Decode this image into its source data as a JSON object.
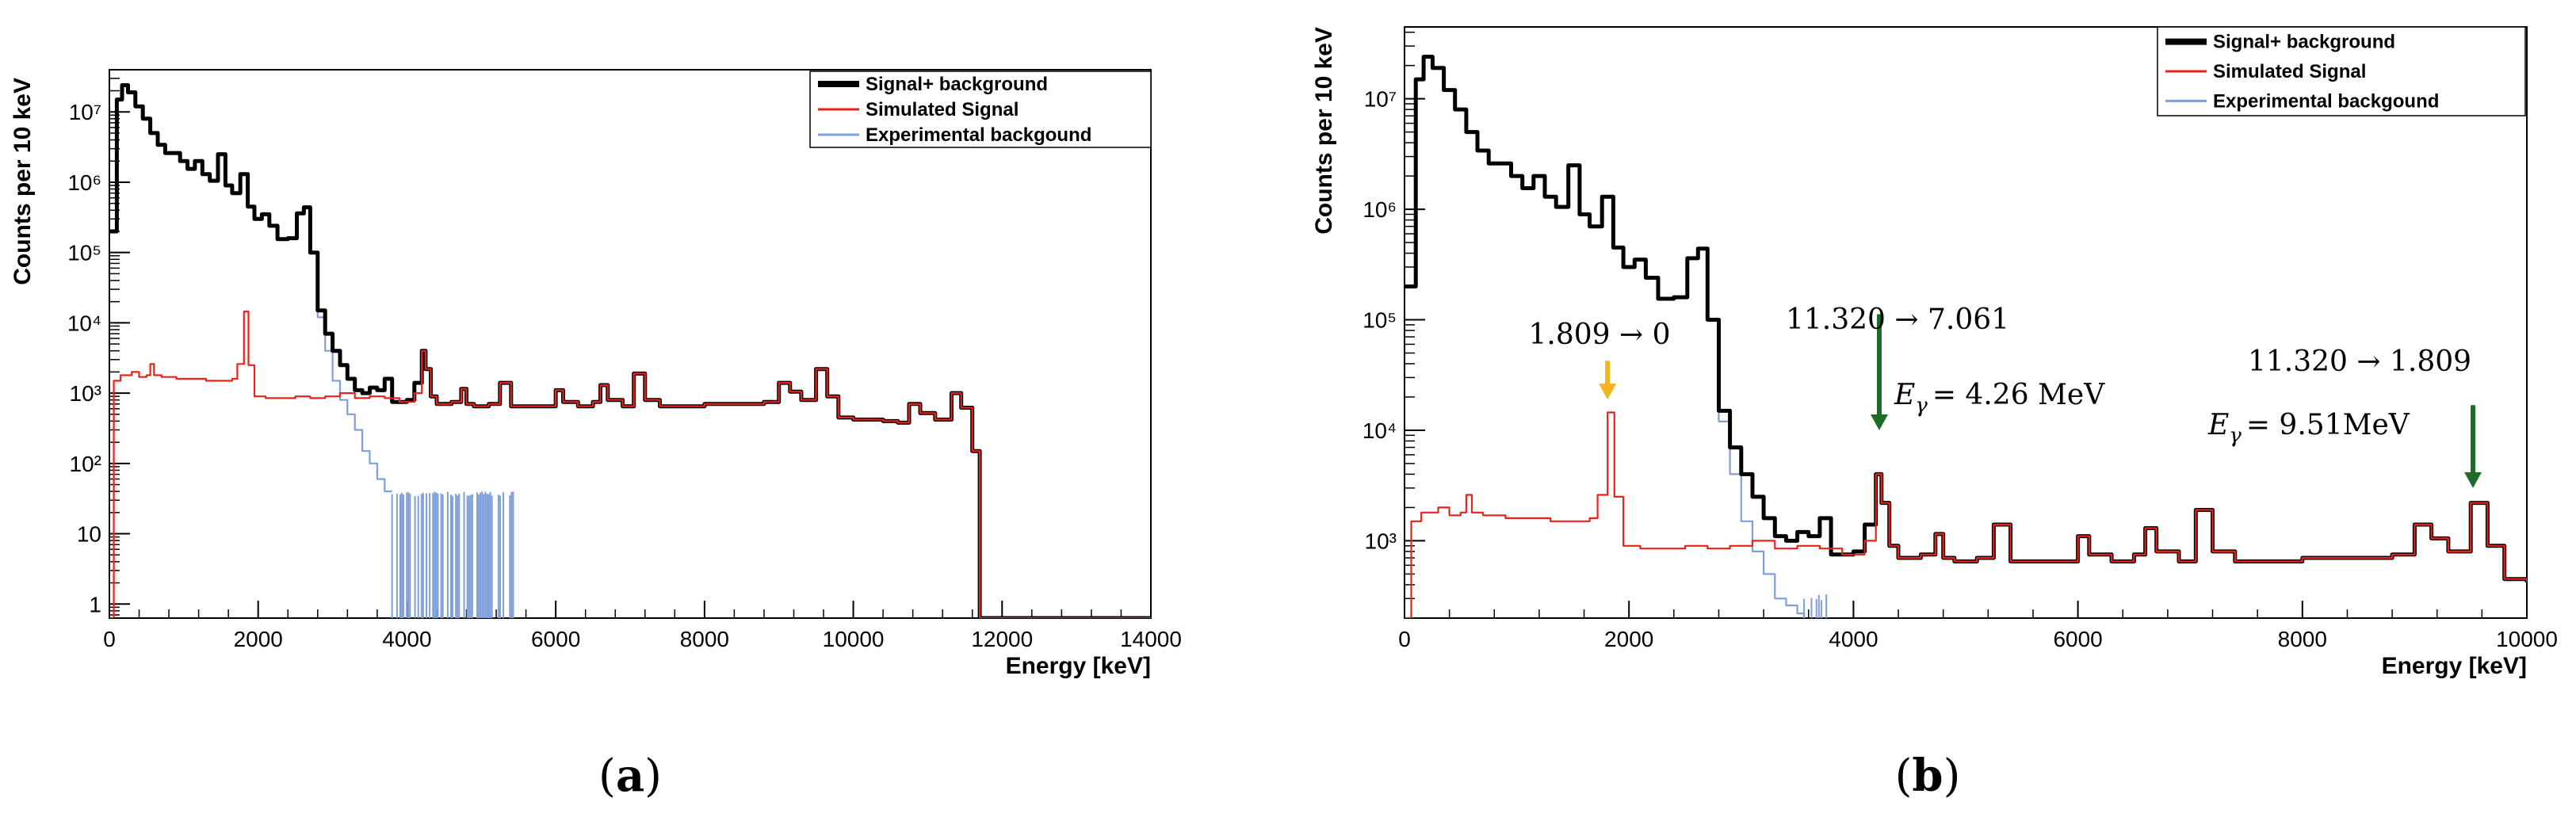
{
  "colors": {
    "signal_background": "#000000",
    "simulated_signal": "#e8231b",
    "experimental_background": "#7f9fd8",
    "arrow_orange": "#f2b51a",
    "arrow_green": "#1f6b2a"
  },
  "chart_data": [
    {
      "type": "line",
      "panel_caption": "(a)",
      "caption_letter": "a",
      "xlabel": "Energy [keV]",
      "ylabel": "Counts per 10 keV",
      "xlim": [
        0,
        14000
      ],
      "ylim_log10": [
        -0.2,
        7.6
      ],
      "yscale": "log",
      "x_ticks": [
        0,
        2000,
        4000,
        6000,
        8000,
        10000,
        12000,
        14000
      ],
      "x_tick_labels": [
        "0",
        "2000",
        "4000",
        "6000",
        "8000",
        "10000",
        "12000",
        "14000"
      ],
      "y_tick_labels": [
        "1",
        "10",
        "10²",
        "10³",
        "10⁴",
        "10⁵",
        "10⁶",
        "10⁷"
      ],
      "legend": [
        "Signal+ background",
        "Simulated Signal",
        "Experimental backgound"
      ],
      "legend_position": "top-right",
      "series": [
        {
          "name": "Signal+ background",
          "x": [
            0,
            100,
            170,
            250,
            350,
            450,
            550,
            650,
            750,
            850,
            950,
            1050,
            1150,
            1250,
            1350,
            1460,
            1560,
            1650,
            1760,
            1860,
            1950,
            2050,
            2150,
            2260,
            2400,
            2520,
            2615,
            2700,
            2800,
            2900,
            3000,
            3100,
            3200,
            3300,
            3400,
            3500,
            3600,
            3700,
            3800,
            3900,
            4000,
            4100,
            4200,
            4250,
            4320,
            4400,
            4600,
            4730,
            4800,
            4900,
            5100,
            5250,
            5400,
            5600,
            5800,
            6000,
            6100,
            6300,
            6500,
            6600,
            6700,
            6900,
            7050,
            7200,
            7400,
            7600,
            7800,
            8000,
            8200,
            8400,
            8600,
            8800,
            9000,
            9150,
            9300,
            9500,
            9650,
            9800,
            10000,
            10200,
            10400,
            10600,
            10750,
            10900,
            11100,
            11320,
            11450,
            11600,
            11700,
            12000,
            14000
          ],
          "values": [
            200000.0,
            15000000.0,
            24000000.0,
            19000000.0,
            12000000.0,
            8000000.0,
            5000000.0,
            3400000.0,
            2600000.0,
            2600000.0,
            2000000.0,
            1550000.0,
            2000000.0,
            1300000.0,
            1050000.0,
            2500000.0,
            900000.0,
            700000.0,
            1300000.0,
            450000.0,
            300000.0,
            350000.0,
            240000.0,
            155000.0,
            160000.0,
            360000.0,
            440000.0,
            100000.0,
            15000.0,
            7000.0,
            4000.0,
            2500.0,
            1600.0,
            1100.0,
            1000.0,
            1200.0,
            1100.0,
            1600.0,
            750,
            750,
            800,
            1400,
            4000,
            2200,
            900,
            700,
            750,
            1150,
            700,
            650,
            700,
            1400,
            650,
            650,
            650,
            1100,
            750,
            650,
            750,
            1300,
            800,
            650,
            1900,
            800,
            650,
            650,
            650,
            700,
            700,
            700,
            700,
            750,
            1400,
            1050,
            800,
            2200,
            900,
            450,
            420,
            420,
            400,
            380,
            700,
            520,
            420,
            1000,
            620,
            150,
            0.4,
            0.4,
            0.4
          ]
        },
        {
          "name": "Simulated Signal",
          "x": [
            0,
            60,
            150,
            300,
            400,
            500,
            550,
            600,
            700,
            900,
            1100,
            1300,
            1500,
            1650,
            1720,
            1809,
            1870,
            1950,
            2100,
            2300,
            2500,
            2700,
            2900,
            3100,
            3300,
            3500,
            3700,
            3900,
            4100,
            4200,
            4250,
            4320,
            4400,
            4600,
            4730,
            4800,
            4900,
            5100,
            5250,
            5400,
            5600,
            5800,
            6000,
            6100,
            6300,
            6500,
            6600,
            6700,
            6900,
            7050,
            7200,
            7400,
            7600,
            7800,
            8000,
            8200,
            8400,
            8600,
            8800,
            9000,
            9150,
            9300,
            9500,
            9650,
            9800,
            10000,
            10200,
            10400,
            10600,
            10750,
            10900,
            11100,
            11320,
            11450,
            11600,
            11700,
            12000,
            14000
          ],
          "values": [
            0.4,
            1500,
            1800,
            2000,
            1700,
            1800,
            2600,
            1800,
            1700,
            1600,
            1600,
            1500,
            1500,
            1600,
            2600,
            14500.0,
            2500,
            900,
            850,
            850,
            900,
            850,
            900,
            1000,
            850,
            900,
            850,
            750,
            1000,
            4000,
            2200,
            900,
            700,
            750,
            1150,
            700,
            650,
            700,
            1400,
            650,
            650,
            650,
            1100,
            750,
            650,
            750,
            1300,
            800,
            650,
            1900,
            800,
            650,
            650,
            650,
            700,
            700,
            700,
            700,
            750,
            1400,
            1050,
            800,
            2200,
            900,
            450,
            420,
            420,
            400,
            380,
            700,
            520,
            420,
            1000,
            620,
            150,
            0.4,
            0.4,
            0.4
          ]
        },
        {
          "name": "Experimental backgound",
          "x": [
            0,
            100,
            170,
            250,
            350,
            450,
            550,
            650,
            750,
            850,
            950,
            1050,
            1150,
            1250,
            1350,
            1460,
            1560,
            1650,
            1760,
            1860,
            1950,
            2050,
            2150,
            2260,
            2400,
            2520,
            2615,
            2700,
            2800,
            2900,
            3000,
            3100,
            3200,
            3300,
            3400,
            3500,
            3600,
            3700,
            3800
          ],
          "values": [
            200000.0,
            15000000.0,
            24000000.0,
            19000000.0,
            12000000.0,
            8000000.0,
            5000000.0,
            3400000.0,
            2600000.0,
            2600000.0,
            2000000.0,
            1550000.0,
            2000000.0,
            1300000.0,
            1050000.0,
            2500000.0,
            900000.0,
            700000.0,
            1300000.0,
            450000.0,
            300000.0,
            350000.0,
            240000.0,
            155000.0,
            160000.0,
            360000.0,
            440000.0,
            100000.0,
            12000.0,
            4000.0,
            1500.0,
            800,
            500,
            300,
            150,
            100,
            60,
            40,
            40
          ],
          "sparse_spikes_x_range": [
            3800,
            5450
          ],
          "sparse_spike_height": 40
        }
      ],
      "annotations": []
    },
    {
      "type": "line",
      "panel_caption": "(b)",
      "caption_letter": "b",
      "xlabel": "Energy [keV]",
      "ylabel": "Counts per 10 keV",
      "xlim": [
        0,
        10000
      ],
      "ylim_log10": [
        2.3,
        7.65
      ],
      "yscale": "log",
      "x_ticks": [
        0,
        2000,
        4000,
        6000,
        8000,
        10000
      ],
      "x_tick_labels": [
        "0",
        "2000",
        "4000",
        "6000",
        "8000",
        "10000"
      ],
      "y_tick_labels": [
        "10³",
        "10⁴",
        "10⁵",
        "10⁶",
        "10⁷"
      ],
      "legend": [
        "Signal+ background",
        "Simulated Signal",
        "Experimental backgound"
      ],
      "legend_position": "top-right",
      "series": [
        {
          "name": "Signal+ background",
          "x": [
            0,
            100,
            170,
            250,
            350,
            450,
            550,
            650,
            750,
            850,
            950,
            1050,
            1150,
            1250,
            1350,
            1460,
            1560,
            1650,
            1760,
            1860,
            1950,
            2050,
            2150,
            2260,
            2400,
            2520,
            2615,
            2700,
            2800,
            2900,
            3000,
            3100,
            3200,
            3300,
            3400,
            3500,
            3600,
            3700,
            3800,
            3900,
            4000,
            4100,
            4200,
            4250,
            4320,
            4400,
            4600,
            4730,
            4800,
            4900,
            5100,
            5250,
            5400,
            5600,
            5800,
            6000,
            6100,
            6300,
            6500,
            6600,
            6700,
            6900,
            7050,
            7200,
            7400,
            7600,
            7800,
            8000,
            8200,
            8400,
            8600,
            8800,
            9000,
            9150,
            9300,
            9500,
            9650,
            9800,
            10000
          ],
          "values": [
            200000.0,
            15000000.0,
            24000000.0,
            19000000.0,
            12000000.0,
            8000000.0,
            5000000.0,
            3400000.0,
            2600000.0,
            2600000.0,
            2000000.0,
            1550000.0,
            2000000.0,
            1300000.0,
            1050000.0,
            2500000.0,
            900000.0,
            700000.0,
            1300000.0,
            450000.0,
            300000.0,
            350000.0,
            240000.0,
            155000.0,
            160000.0,
            360000.0,
            440000.0,
            100000.0,
            15000.0,
            7000.0,
            4000.0,
            2500.0,
            1600.0,
            1100.0,
            1000.0,
            1200.0,
            1100.0,
            1600.0,
            750,
            750,
            800,
            1400,
            4000,
            2200,
            900,
            700,
            750,
            1150,
            700,
            650,
            700,
            1400,
            650,
            650,
            650,
            1100,
            750,
            650,
            750,
            1300,
            800,
            650,
            1900,
            800,
            650,
            650,
            650,
            700,
            700,
            700,
            700,
            750,
            1400,
            1050,
            800,
            2200,
            900,
            450,
            420
          ]
        },
        {
          "name": "Simulated Signal",
          "x": [
            0,
            60,
            150,
            300,
            400,
            500,
            550,
            600,
            700,
            900,
            1100,
            1300,
            1500,
            1650,
            1720,
            1809,
            1870,
            1950,
            2100,
            2300,
            2500,
            2700,
            2900,
            3100,
            3300,
            3500,
            3700,
            3900,
            4100,
            4200,
            4250,
            4320,
            4400,
            4600,
            4730,
            4800,
            4900,
            5100,
            5250,
            5400,
            5600,
            5800,
            6000,
            6100,
            6300,
            6500,
            6600,
            6700,
            6900,
            7050,
            7200,
            7400,
            7600,
            7800,
            8000,
            8200,
            8400,
            8600,
            8800,
            9000,
            9150,
            9300,
            9500,
            9650,
            9800,
            10000
          ],
          "values": [
            200,
            1500,
            1800,
            2000,
            1700,
            1800,
            2600,
            1800,
            1700,
            1600,
            1600,
            1500,
            1500,
            1600,
            2600,
            14500.0,
            2500,
            900,
            850,
            850,
            900,
            850,
            900,
            1000,
            850,
            900,
            850,
            750,
            1000,
            4000,
            2200,
            900,
            700,
            750,
            1150,
            700,
            650,
            700,
            1400,
            650,
            650,
            650,
            1100,
            750,
            650,
            750,
            1300,
            800,
            650,
            1900,
            800,
            650,
            650,
            650,
            700,
            700,
            700,
            700,
            750,
            1400,
            1050,
            800,
            2200,
            900,
            450,
            420
          ]
        },
        {
          "name": "Experimental backgound",
          "x": [
            0,
            100,
            170,
            250,
            350,
            450,
            550,
            650,
            750,
            850,
            950,
            1050,
            1150,
            1250,
            1350,
            1460,
            1560,
            1650,
            1760,
            1860,
            1950,
            2050,
            2150,
            2260,
            2400,
            2520,
            2615,
            2700,
            2800,
            2900,
            3000,
            3100,
            3200,
            3300,
            3400,
            3500,
            3560
          ],
          "values": [
            200000.0,
            15000000.0,
            24000000.0,
            19000000.0,
            12000000.0,
            8000000.0,
            5000000.0,
            3400000.0,
            2600000.0,
            2600000.0,
            2000000.0,
            1550000.0,
            2000000.0,
            1300000.0,
            1050000.0,
            2500000.0,
            900000.0,
            700000.0,
            1300000.0,
            450000.0,
            300000.0,
            350000.0,
            240000.0,
            155000.0,
            160000.0,
            360000.0,
            440000.0,
            100000.0,
            12000.0,
            4000.0,
            1500.0,
            800,
            500,
            300,
            260,
            220,
            200
          ],
          "sparse_spikes_x_range": [
            3560,
            3760
          ],
          "sparse_spike_height": 350
        }
      ],
      "annotations": [
        {
          "label": "1.809 → 0",
          "arrow_x": 1809,
          "arrow_tip": 19000.0,
          "arrow_len_decades": 0.35,
          "color_key": "arrow_orange",
          "text_anchor": "middle"
        },
        {
          "label": "11.320 → 7.061",
          "arrow_x": 4230,
          "arrow_tip": 10000.0,
          "arrow_len_decades": 1.05,
          "color_key": "arrow_green",
          "text_anchor": "middle"
        },
        {
          "label": "11.320 → 1.809",
          "arrow_x": 9520,
          "arrow_tip": 3000.0,
          "arrow_len_decades": 0.75,
          "color_key": "arrow_green",
          "text_anchor": "middle"
        }
      ],
      "energy_labels": [
        {
          "symbol": "E",
          "subscript": "γ",
          "value": "= 4.26 MeV"
        },
        {
          "symbol": "E",
          "subscript": "γ",
          "value": "= 9.51MeV"
        }
      ]
    }
  ]
}
